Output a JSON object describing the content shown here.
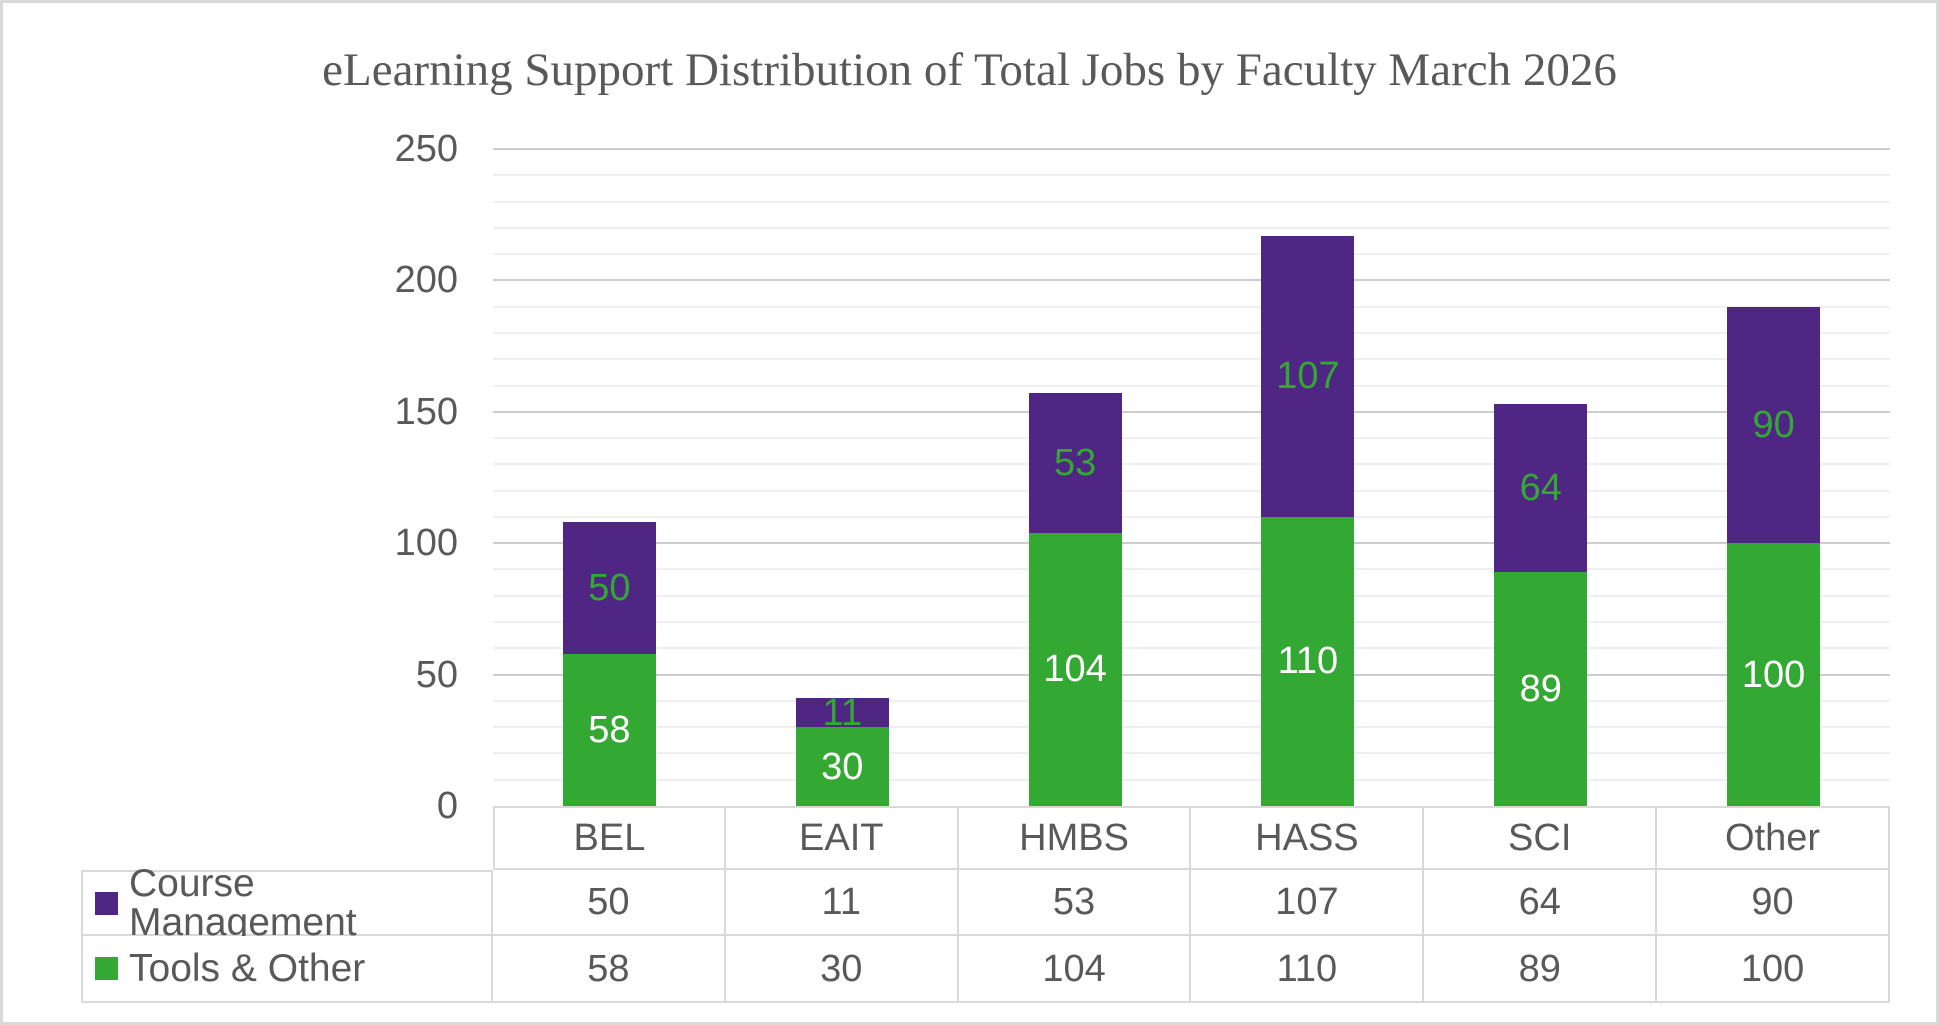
{
  "title": "eLearning Support Distribution of Total Jobs by Faculty March 2026",
  "colors": {
    "series_green": "#33A832",
    "series_purple": "#4F2683",
    "data_label_on_green": "#FFFFFF",
    "data_label_on_purple": "#33A832",
    "text": "#595959",
    "grid_major": "#CDCDCD",
    "grid_minor": "#EFEFEF",
    "table_border": "#D9D9D9",
    "frame_border": "#D9D9D9"
  },
  "chart_data": {
    "type": "bar",
    "stacked": true,
    "title": "eLearning Support Distribution of Total Jobs by Faculty March 2026",
    "categories": [
      "BEL",
      "EAIT",
      "HMBS",
      "HASS",
      "SCI",
      "Other"
    ],
    "series": [
      {
        "name": "Tools & Other",
        "values": [
          58,
          30,
          104,
          110,
          89,
          100
        ],
        "color": "#33A832",
        "data_label_color": "#FFFFFF"
      },
      {
        "name": "Course Management",
        "values": [
          50,
          11,
          53,
          107,
          64,
          90
        ],
        "color": "#4F2683",
        "data_label_color": "#33A832"
      }
    ],
    "xlabel": "",
    "ylabel": "",
    "ylim": [
      0,
      250
    ],
    "yticks": [
      0,
      50,
      100,
      150,
      200,
      250
    ],
    "major_unit": 50,
    "minor_unit": 10,
    "grid": true,
    "legend_position": "bottom-data-table",
    "data_labels": "centered-inside-segments"
  },
  "data_table": {
    "header": [
      "BEL",
      "EAIT",
      "HMBS",
      "HASS",
      "SCI",
      "Other"
    ],
    "rows": [
      {
        "label": "Course Management",
        "swatch_color": "#4F2683",
        "values": [
          50,
          11,
          53,
          107,
          64,
          90
        ]
      },
      {
        "label": "Tools & Other",
        "swatch_color": "#33A832",
        "values": [
          58,
          30,
          104,
          110,
          89,
          100
        ]
      }
    ]
  }
}
